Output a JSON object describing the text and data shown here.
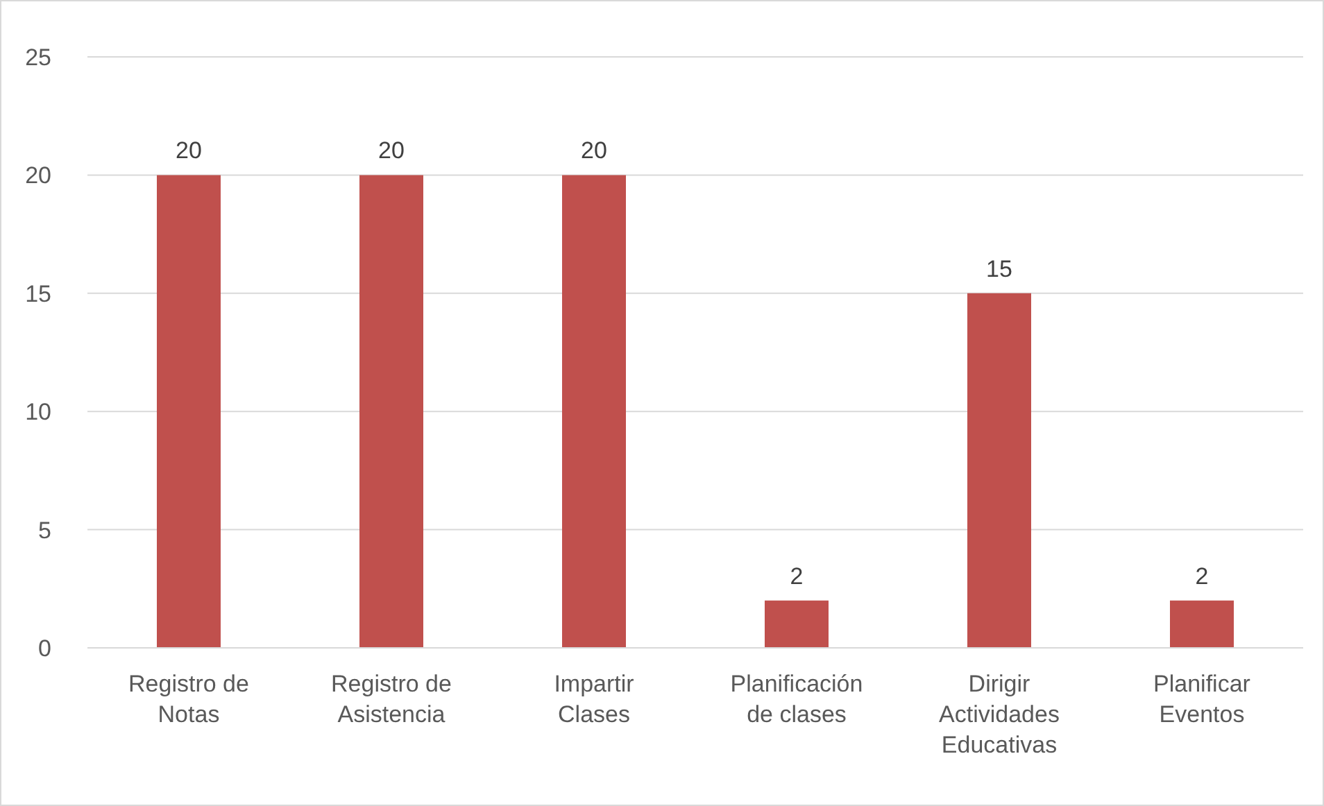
{
  "chart_data": {
    "type": "bar",
    "categories": [
      "Registro de Notas",
      "Registro de Asistencia",
      "Impartir Clases",
      "Planificación de clases",
      "Dirigir Actividades Educativas",
      "Planificar Eventos"
    ],
    "values": [
      20,
      20,
      20,
      2,
      15,
      2
    ],
    "color": "#c0504d",
    "ylim": [
      0,
      25
    ],
    "yticks": [
      0,
      5,
      10,
      15,
      20,
      25
    ],
    "grid": "y",
    "data_labels": true
  }
}
